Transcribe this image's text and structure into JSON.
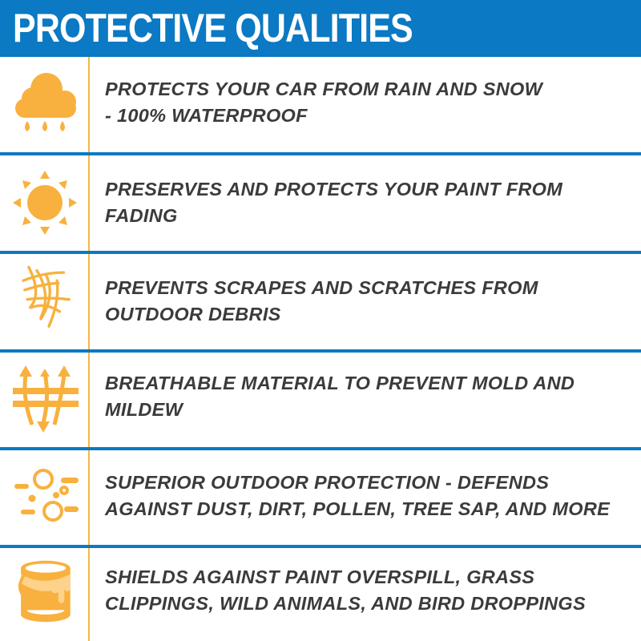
{
  "header": {
    "title": "PROTECTIVE QUALITIES"
  },
  "colors": {
    "header_blue": "#0b79c3",
    "icon_orange": "#f8b13e",
    "text_gray": "#3b3b3d"
  },
  "features": [
    {
      "icon": "cloud-rain-icon",
      "text": "PROTECTS YOUR CAR FROM RAIN AND SNOW - 100% WATERPROOF",
      "line1": "PROTECTS YOUR CAR FROM RAIN AND SNOW",
      "line2": "- 100% WATERPROOF"
    },
    {
      "icon": "sun-icon",
      "line1": "PRESERVES AND PROTECTS YOUR PAINT FROM",
      "line2": "FADING"
    },
    {
      "icon": "scratches-icon",
      "line1": "PREVENTS SCRAPES AND SCRATCHES FROM",
      "line2": "OUTDOOR DEBRIS"
    },
    {
      "icon": "breathable-arrows-icon",
      "line1": "BREATHABLE MATERIAL TO PREVENT MOLD AND",
      "line2": "MILDEW"
    },
    {
      "icon": "particles-icon",
      "line1": "SUPERIOR OUTDOOR PROTECTION - DEFENDS",
      "line2": "AGAINST DUST, DIRT, POLLEN, TREE SAP, AND MORE"
    },
    {
      "icon": "paint-bucket-icon",
      "line1": "SHIELDS AGAINST PAINT OVERSPILL, GRASS",
      "line2": "CLIPPINGS, WILD ANIMALS, AND BIRD DROPPINGS"
    }
  ]
}
